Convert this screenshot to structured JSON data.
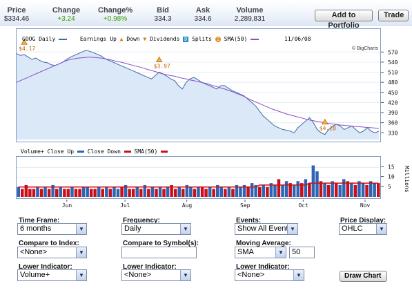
{
  "quote": {
    "price_label": "Price",
    "price": "$334.46",
    "change_label": "Change",
    "change": "+3.24",
    "change_pct_label": "Change%",
    "change_pct": "+0.98%",
    "bid_label": "Bid",
    "bid": "334.3",
    "ask_label": "Ask",
    "ask": "334.6",
    "volume_label": "Volume",
    "volume": "2,289,831"
  },
  "buttons": {
    "add_portfolio": "Add to Portfolio",
    "trade": "Trade",
    "draw_chart": "Draw Chart"
  },
  "legend": {
    "symbol": "GOOG Daily",
    "earnings": "Earnings",
    "up": "Up",
    "down": "Down",
    "dividends": "Dividends",
    "splits": "Splits",
    "sma": "SMA(50)",
    "date": "11/06/08",
    "credit": "© BigCharts"
  },
  "vol_legend": {
    "close_up": "Volume+ Close Up",
    "close_down": "Close Down",
    "sma": "SMA(50)"
  },
  "vol_axis_title": "Millions",
  "colors": {
    "price_fill": "#dbe8f7",
    "price_line": "#3d6aa8",
    "sma_line": "#8a4ec2",
    "vol_up": "#2e64b3",
    "vol_down": "#c8101b",
    "frame": "#7f9cc6"
  },
  "chart_data": {
    "type": "line",
    "x_tick_labels": [
      "Jun",
      "Jul",
      "Aug",
      "Sep",
      "Oct",
      "Nov"
    ],
    "price_axis": {
      "ticks": [
        570,
        540,
        510,
        480,
        450,
        420,
        390,
        360,
        330
      ],
      "range": [
        310,
        585
      ]
    },
    "price_series": [
      {
        "name": "GOOG Daily",
        "values": [
          565,
          560,
          562,
          555,
          548,
          552,
          545,
          540,
          538,
          532,
          530,
          535,
          540,
          548,
          555,
          560,
          565,
          570,
          575,
          572,
          568,
          563,
          558,
          550,
          545,
          540,
          535,
          530,
          525,
          520,
          515,
          510,
          505,
          500,
          495,
          490,
          500,
          510,
          505,
          498,
          490,
          485,
          470,
          460,
          480,
          490,
          495,
          488,
          480,
          475,
          470,
          465,
          460,
          470,
          470,
          462,
          455,
          450,
          445,
          440,
          430,
          420,
          410,
          395,
          380,
          370,
          360,
          350,
          345,
          340,
          338,
          335,
          330,
          345,
          355,
          365,
          375,
          360,
          340,
          330,
          325,
          340,
          350,
          355,
          350,
          340,
          345,
          350,
          340,
          330,
          335,
          345,
          335,
          330,
          335
        ]
      },
      {
        "name": "SMA(50)",
        "values": [
          480,
          485,
          490,
          495,
          500,
          505,
          510,
          515,
          520,
          525,
          530,
          535,
          540,
          545,
          548,
          550,
          552,
          553,
          554,
          555,
          554,
          553,
          552,
          550,
          548,
          545,
          542,
          540,
          537,
          534,
          531,
          528,
          525,
          522,
          518,
          515,
          512,
          508,
          505,
          502,
          500,
          498,
          495,
          492,
          490,
          487,
          485,
          482,
          480,
          477,
          474,
          470,
          467,
          463,
          460,
          456,
          452,
          447,
          443,
          438,
          432,
          427,
          422,
          417,
          412,
          407,
          402,
          398,
          394,
          390,
          386,
          383,
          380,
          377,
          374,
          371,
          368,
          366,
          364,
          362,
          360,
          358,
          356,
          355,
          353,
          352,
          351,
          350,
          349,
          348,
          347,
          346,
          345,
          344,
          343
        ]
      }
    ],
    "events": [
      {
        "label": "$4.17",
        "type": "earnings-up",
        "index": 2
      },
      {
        "label": "$3.97",
        "type": "earnings-down",
        "index": 37
      },
      {
        "label": "$4.28",
        "type": "earnings-down",
        "index": 80
      }
    ],
    "volume_axis": {
      "ticks": [
        15,
        10,
        5
      ],
      "range": [
        0,
        19
      ]
    },
    "volume_series": [
      {
        "name": "Close Up",
        "values": [
          5,
          4,
          6,
          4,
          4,
          5,
          4,
          5,
          4,
          6,
          4,
          5,
          4,
          4,
          5,
          4,
          4,
          5,
          5,
          4,
          4,
          5,
          4,
          5,
          4,
          5,
          4,
          5,
          6,
          4,
          4,
          5,
          4,
          6,
          4,
          5,
          4,
          5,
          4,
          5,
          6,
          4,
          5,
          4,
          6,
          5,
          4,
          5,
          5,
          4,
          5,
          4,
          6,
          5,
          4,
          5,
          4,
          6,
          5,
          6,
          5,
          7,
          6,
          5,
          6,
          5,
          7,
          6,
          9,
          6,
          8,
          7,
          6,
          8,
          7,
          9,
          7,
          16,
          13,
          8,
          7,
          6,
          8,
          7,
          6,
          9,
          8,
          7,
          6,
          8,
          7,
          6,
          8,
          7,
          7
        ]
      },
      {
        "name": "Close Down",
        "flags": [
          0,
          1,
          1,
          1,
          1,
          0,
          1,
          0,
          1,
          0,
          1,
          0,
          1,
          1,
          0,
          1,
          1,
          0,
          0,
          1,
          1,
          0,
          1,
          0,
          1,
          0,
          0,
          1,
          0,
          1,
          1,
          0,
          1,
          0,
          1,
          0,
          1,
          0,
          1,
          0,
          1,
          1,
          0,
          1,
          0,
          0,
          1,
          0,
          1,
          1,
          0,
          1,
          0,
          0,
          1,
          0,
          1,
          0,
          0,
          0,
          1,
          0,
          0,
          1,
          0,
          1,
          0,
          0,
          1,
          0,
          0,
          1,
          0,
          0,
          1,
          0,
          1,
          0,
          0,
          1,
          0,
          1,
          0,
          1,
          0,
          0,
          1,
          0,
          1,
          0,
          0,
          1,
          0,
          0,
          1
        ]
      },
      {
        "name": "SMA(50)",
        "values": [
          5,
          5,
          5,
          5,
          5,
          5,
          5,
          5,
          5,
          5,
          5,
          5,
          5,
          5,
          5,
          5,
          5,
          5,
          5,
          5,
          5,
          5,
          5,
          5,
          5,
          5,
          5,
          5,
          5,
          5,
          5,
          5,
          5,
          5,
          5,
          5,
          5,
          5,
          5,
          5,
          5,
          5,
          5,
          5,
          5,
          5,
          5,
          5,
          5,
          5,
          5,
          5,
          5,
          5,
          5,
          5,
          5,
          5,
          5,
          5,
          5,
          5,
          5,
          6,
          6,
          6,
          6,
          6,
          6,
          6,
          6,
          6,
          6,
          6,
          6,
          6,
          7,
          7,
          7,
          7,
          7,
          7,
          7,
          7,
          7,
          7,
          7,
          7,
          7,
          7,
          7,
          7,
          7,
          7,
          7
        ]
      }
    ]
  },
  "form": {
    "time_frame": {
      "label": "Time Frame:",
      "value": "6 months"
    },
    "frequency": {
      "label": "Frequency:",
      "value": "Daily"
    },
    "events": {
      "label": "Events:",
      "value": "Show All Events"
    },
    "price_display": {
      "label": "Price Display:",
      "value": "OHLC"
    },
    "compare_index": {
      "label": "Compare to Index:",
      "value": "<None>"
    },
    "compare_symbols": {
      "label": "Compare to Symbol(s):",
      "value": ""
    },
    "moving_average": {
      "label": "Moving Average:",
      "value": "SMA",
      "period": "50"
    },
    "lower_indicator_1": {
      "label": "Lower Indicator:",
      "value": "Volume+"
    },
    "lower_indicator_2": {
      "label": "Lower Indicator:",
      "value": "<None>"
    },
    "lower_indicator_3": {
      "label": "Lower Indicator:",
      "value": "<None>"
    }
  }
}
